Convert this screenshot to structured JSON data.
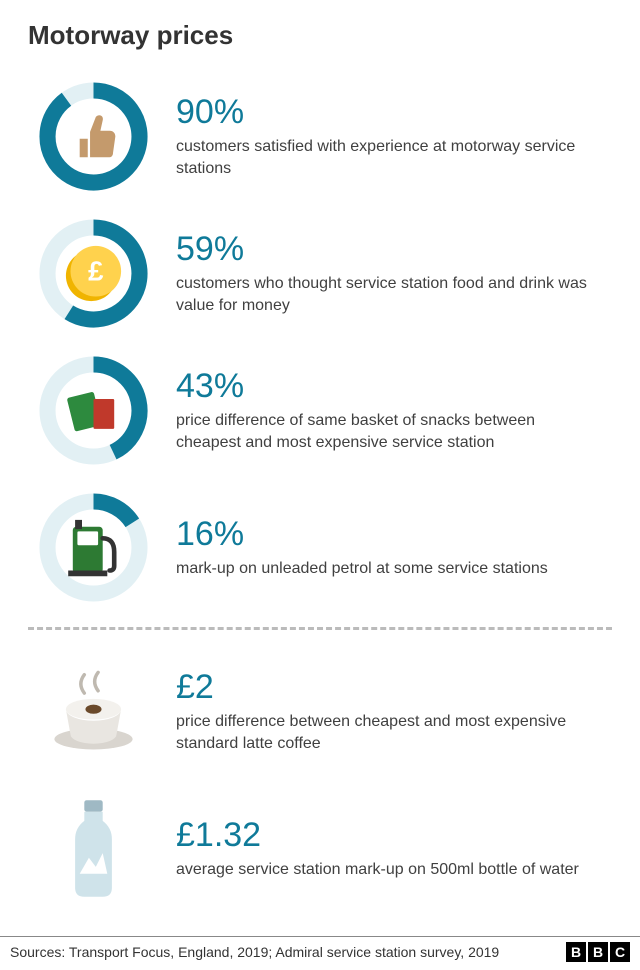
{
  "title": "Motorway prices",
  "ring_color": "#0f7a99",
  "ring_track_color": "#e2f0f4",
  "stat_color": "#0f7a99",
  "desc_color": "#404040",
  "stat_fontsize": 34,
  "desc_fontsize": 16,
  "title_fontsize": 26,
  "divider_color": "#bbbbbb",
  "items": [
    {
      "percent": 90,
      "stat": "90%",
      "desc": "customers satisfied with experience at motorway service stations",
      "icon": "thumb"
    },
    {
      "percent": 59,
      "stat": "59%",
      "desc": "customers who thought service station food and drink was value for money",
      "icon": "coin"
    },
    {
      "percent": 43,
      "stat": "43%",
      "desc": "price difference of same basket of snacks between cheapest and most expensive service station",
      "icon": "snacks"
    },
    {
      "percent": 16,
      "stat": "16%",
      "desc": "mark-up on unleaded petrol at some service stations",
      "icon": "pump"
    }
  ],
  "extras": [
    {
      "stat": "£2",
      "desc": "price difference between cheapest and most expensive standard latte coffee",
      "icon": "coffee"
    },
    {
      "stat": "£1.32",
      "desc": "average service station mark-up on 500ml bottle of water",
      "icon": "bottle"
    }
  ],
  "source_text": "Sources: Transport Focus, England, 2019;  Admiral service station survey, 2019",
  "brand": "BBC",
  "icon_colors": {
    "thumb_fill": "#c49a6c",
    "coin_outer": "#f0b400",
    "coin_inner": "#ffd24d",
    "snack_green": "#2d8a3e",
    "snack_red": "#c0392b",
    "pump_body": "#2d7a33",
    "pump_dark": "#333333",
    "coffee_cup": "#e9e6e1",
    "coffee_saucer": "#d9d5cf",
    "coffee_bean": "#6b4a2b",
    "coffee_steam": "#bfb9b0",
    "bottle_body": "#cfe3ea",
    "bottle_cap": "#9fb9c4",
    "bottle_mountain": "#ffffff"
  }
}
